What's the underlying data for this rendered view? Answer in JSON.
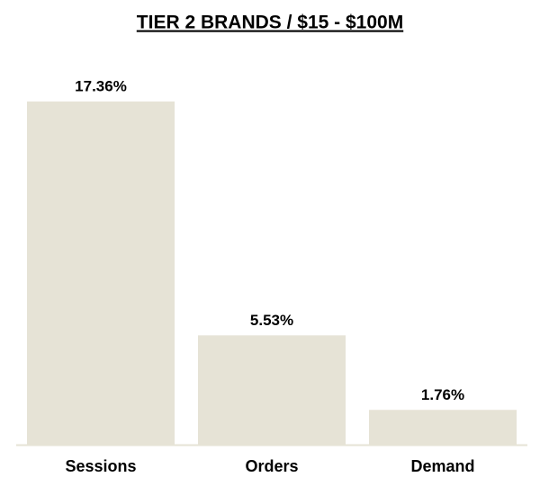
{
  "chart_data": {
    "type": "bar",
    "title": "TIER 2 BRANDS / $15 - $100M",
    "categories": [
      "Sessions",
      "Orders",
      "Demand"
    ],
    "values": [
      17.36,
      5.53,
      1.76
    ],
    "value_labels": [
      "17.36%",
      "5.53%",
      "1.76%"
    ],
    "color": "#e6e3d6"
  }
}
